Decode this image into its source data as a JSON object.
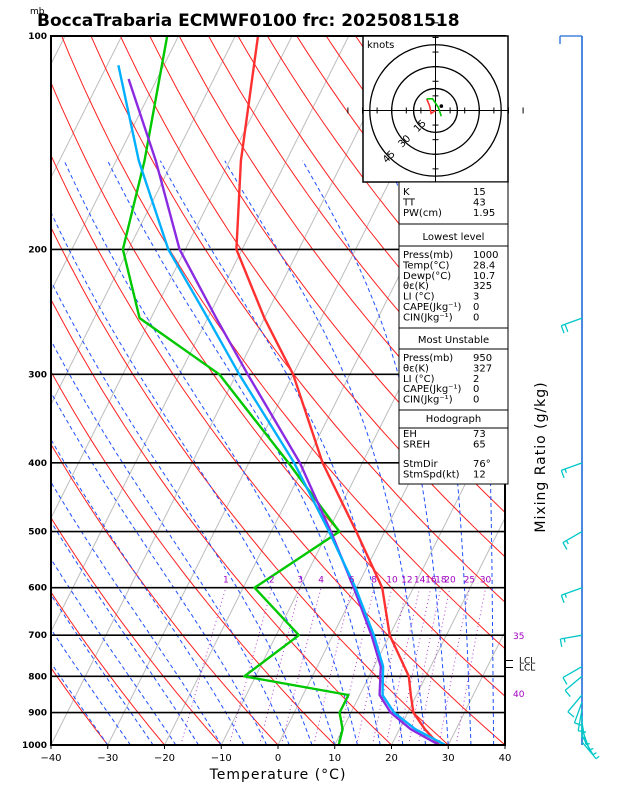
{
  "chart_data": {
    "type": "line",
    "title": "BoccaTrabaria ECMWF0100 frc: 2025081518",
    "pressure_unit": "mb",
    "xlabel": "Temperature (°C)",
    "right_label": "Mixing Ratio (g/kg)",
    "xlim": [
      -40,
      40
    ],
    "x_ticks": [
      "−40",
      "−30",
      "−20",
      "−10",
      "0",
      "10",
      "20",
      "30",
      "40"
    ],
    "p_ticks": [
      "100",
      "200",
      "300",
      "400",
      "500",
      "600",
      "700",
      "800",
      "900",
      "1000"
    ],
    "p_values": [
      100,
      200,
      300,
      400,
      500,
      600,
      700,
      800,
      900,
      1000
    ],
    "mixing_ratio_labels": [
      {
        "v": 1,
        "text": "1"
      },
      {
        "v": 2,
        "text": "2"
      },
      {
        "v": 3,
        "text": "3"
      },
      {
        "v": 4,
        "text": "4"
      },
      {
        "v": 6,
        "text": "6"
      },
      {
        "v": 8,
        "text": "8"
      },
      {
        "v": 10,
        "text": "10"
      },
      {
        "v": 12,
        "text": "12"
      },
      {
        "v": 14,
        "text": "14"
      },
      {
        "v": 16,
        "text": "16"
      },
      {
        "v": 18,
        "text": "18"
      },
      {
        "v": 20,
        "text": "20"
      },
      {
        "v": 25,
        "text": "25"
      },
      {
        "v": 30,
        "text": "30"
      }
    ],
    "right_side_labels": [
      {
        "p": 700,
        "text": "35"
      },
      {
        "p": 845,
        "text": "40"
      }
    ],
    "lcl_labels": [
      "LCL",
      "LCL"
    ],
    "series": [
      {
        "key": "temperature",
        "color": "#ff3030",
        "points": [
          [
            1000,
            28.4
          ],
          [
            950,
            24.5
          ],
          [
            900,
            21.0
          ],
          [
            850,
            19.0
          ],
          [
            800,
            17.0
          ],
          [
            700,
            10.0
          ],
          [
            600,
            4.5
          ],
          [
            500,
            -5.0
          ],
          [
            400,
            -17.0
          ],
          [
            300,
            -30.0
          ],
          [
            250,
            -40.0
          ],
          [
            200,
            -51.0
          ],
          [
            150,
            -58.0
          ],
          [
            100,
            -66.0
          ]
        ]
      },
      {
        "key": "dewpoint",
        "color": "#00c800",
        "points": [
          [
            1000,
            10.7
          ],
          [
            950,
            10.0
          ],
          [
            900,
            8.0
          ],
          [
            850,
            8.0
          ],
          [
            800,
            -12.0
          ],
          [
            700,
            -6.0
          ],
          [
            600,
            -18.0
          ],
          [
            500,
            -8.0
          ],
          [
            400,
            -23.0
          ],
          [
            300,
            -43.0
          ],
          [
            250,
            -62.0
          ],
          [
            200,
            -71.0
          ],
          [
            150,
            -75.0
          ],
          [
            100,
            -82.0
          ]
        ]
      },
      {
        "key": "parcel",
        "color": "#8a2be2",
        "points": [
          [
            1000,
            28.4
          ],
          [
            950,
            22.0
          ],
          [
            900,
            17.0
          ],
          [
            850,
            13.5
          ],
          [
            775,
            11.2
          ],
          [
            700,
            6.8
          ],
          [
            600,
            -0.5
          ],
          [
            500,
            -9.5
          ],
          [
            400,
            -21.0
          ],
          [
            300,
            -38.0
          ],
          [
            250,
            -48.5
          ],
          [
            200,
            -61.0
          ],
          [
            150,
            -73.0
          ],
          [
            115,
            -85.0
          ]
        ]
      },
      {
        "key": "virtual_parcel",
        "color": "#00b0ff",
        "points": [
          [
            1000,
            29.5
          ],
          [
            950,
            22.8
          ],
          [
            900,
            17.6
          ],
          [
            850,
            14.0
          ],
          [
            775,
            11.6
          ],
          [
            700,
            7.2
          ],
          [
            600,
            -0.2
          ],
          [
            500,
            -9.8
          ],
          [
            400,
            -22.0
          ],
          [
            300,
            -39.5
          ],
          [
            250,
            -50.0
          ],
          [
            200,
            -63.0
          ],
          [
            150,
            -76.0
          ],
          [
            110,
            -88.0
          ]
        ]
      }
    ],
    "winds": [
      {
        "p": 100,
        "dir": 270,
        "spd": 10
      },
      {
        "p": 250,
        "dir": 250,
        "spd": 20
      },
      {
        "p": 400,
        "dir": 250,
        "spd": 15
      },
      {
        "p": 500,
        "dir": 240,
        "spd": 15
      },
      {
        "p": 600,
        "dir": 250,
        "spd": 15
      },
      {
        "p": 700,
        "dir": 260,
        "spd": 15
      },
      {
        "p": 775,
        "dir": 240,
        "spd": 10
      },
      {
        "p": 800,
        "dir": 230,
        "spd": 10
      },
      {
        "p": 850,
        "dir": 220,
        "spd": 10
      },
      {
        "p": 870,
        "dir": 200,
        "spd": 10
      },
      {
        "p": 890,
        "dir": 190,
        "spd": 10
      },
      {
        "p": 910,
        "dir": 180,
        "spd": 5
      },
      {
        "p": 930,
        "dir": 170,
        "spd": 5
      },
      {
        "p": 950,
        "dir": 160,
        "spd": 5
      },
      {
        "p": 970,
        "dir": 150,
        "spd": 5
      },
      {
        "p": 990,
        "dir": 140,
        "spd": 5
      }
    ],
    "hodograph": {
      "unit_label": "knots",
      "ring_labels": [
        {
          "r": 15,
          "text": "15"
        },
        {
          "r": 30,
          "text": "30"
        },
        {
          "r": 45,
          "text": "45"
        }
      ],
      "trace_low": [
        [
          0,
          0
        ],
        [
          -3,
          2
        ],
        [
          -4,
          -3
        ],
        [
          -6,
          -8
        ]
      ],
      "trace_upper": [
        [
          -6,
          -8
        ],
        [
          -2,
          -8
        ],
        [
          2,
          -2
        ],
        [
          4,
          4
        ]
      ],
      "storm_motion": [
        4,
        3
      ]
    },
    "indices": {
      "general": [
        {
          "label": "K",
          "value": "15"
        },
        {
          "label": "TT",
          "value": "43"
        },
        {
          "label": "PW(cm)",
          "value": "1.95"
        }
      ],
      "lowest_level": {
        "header": "Lowest level",
        "rows": [
          {
            "label": "Press(mb)",
            "value": "1000"
          },
          {
            "label": "Temp(°C)",
            "value": "28.4"
          },
          {
            "label": "Dewp(°C)",
            "value": "10.7"
          },
          {
            "label": "θε(K)",
            "value": "325"
          },
          {
            "label": "LI (°C)",
            "value": "3"
          },
          {
            "label": "CAPE(Jkg⁻¹)",
            "value": "0"
          },
          {
            "label": "CIN(Jkg⁻¹)",
            "value": "0"
          }
        ]
      },
      "most_unstable": {
        "header": "Most Unstable",
        "rows": [
          {
            "label": "Press(mb)",
            "value": "950"
          },
          {
            "label": "θε(K)",
            "value": "327"
          },
          {
            "label": "LI (°C)",
            "value": "2"
          },
          {
            "label": "CAPE(Jkg⁻¹)",
            "value": "0"
          },
          {
            "label": "CIN(Jkg⁻¹)",
            "value": "0"
          }
        ]
      },
      "hodograph": {
        "header": "Hodograph",
        "rows": [
          {
            "label": "EH",
            "value": "73"
          },
          {
            "label": "SREH",
            "value": "65"
          },
          {
            "label": "StmDir",
            "value": "76°"
          },
          {
            "label": "StmSpd(kt)",
            "value": "12"
          }
        ]
      }
    }
  }
}
